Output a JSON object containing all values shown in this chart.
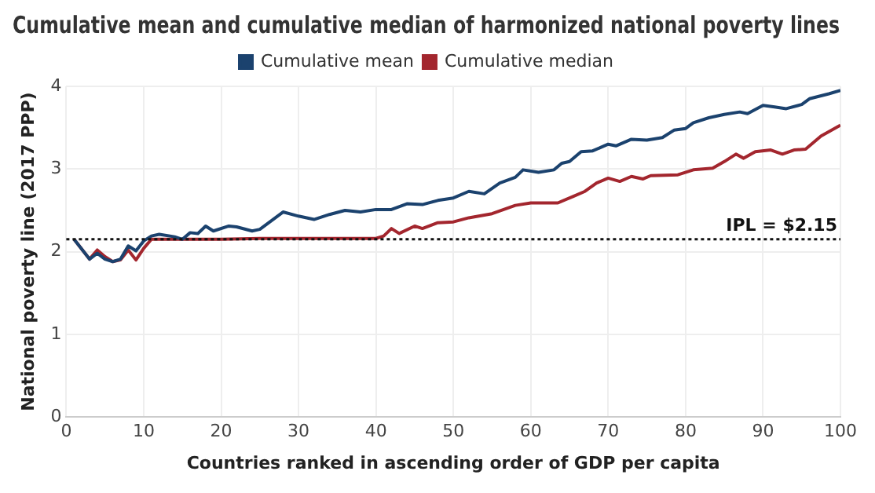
{
  "chart_data": {
    "type": "line",
    "title": "Cumulative mean and cumulative median of harmonized national poverty lines",
    "xlabel": "Countries ranked in ascending order of GDP per capita",
    "ylabel": "National poverty line (2017 PPP)",
    "series": [
      {
        "name": "Cumulative mean",
        "color": "#1b426e",
        "x": [
          1,
          3,
          4,
          5,
          6,
          7,
          8,
          9,
          10,
          11,
          12,
          14,
          15,
          16,
          17,
          18,
          19,
          21,
          22,
          24,
          25,
          28,
          30,
          32,
          34,
          36,
          38,
          40,
          42,
          44,
          46,
          48,
          50,
          52,
          54,
          56,
          58,
          59,
          61,
          63,
          64,
          65,
          66.5,
          68,
          70,
          71,
          73,
          75,
          77,
          78.5,
          80,
          81,
          83,
          85,
          87,
          88,
          90,
          91.5,
          93,
          95,
          96,
          98.5,
          100
        ],
        "values": [
          2.15,
          1.91,
          1.98,
          1.91,
          1.88,
          1.91,
          2.07,
          2.01,
          2.13,
          2.19,
          2.21,
          2.18,
          2.15,
          2.23,
          2.22,
          2.31,
          2.25,
          2.31,
          2.3,
          2.25,
          2.27,
          2.48,
          2.43,
          2.39,
          2.45,
          2.5,
          2.48,
          2.51,
          2.51,
          2.58,
          2.57,
          2.62,
          2.65,
          2.73,
          2.7,
          2.83,
          2.9,
          2.99,
          2.96,
          2.99,
          3.07,
          3.09,
          3.21,
          3.22,
          3.3,
          3.28,
          3.36,
          3.35,
          3.38,
          3.47,
          3.49,
          3.56,
          3.62,
          3.66,
          3.69,
          3.67,
          3.77,
          3.75,
          3.73,
          3.78,
          3.85,
          3.91,
          3.95
        ]
      },
      {
        "name": "Cumulative median",
        "color": "#a3262e",
        "x": [
          1,
          3,
          4,
          5,
          6,
          7,
          8,
          9,
          10,
          11,
          12,
          20,
          25,
          40,
          41,
          42,
          43,
          45,
          46,
          48,
          50,
          52,
          55,
          58,
          60,
          63.5,
          65.5,
          67,
          68.5,
          70,
          71.5,
          73,
          74.5,
          75.5,
          79,
          81,
          83.5,
          85,
          86.5,
          87.5,
          89,
          91,
          92.5,
          94,
          95.5,
          97.5,
          100
        ],
        "values": [
          2.15,
          1.91,
          2.02,
          1.94,
          1.88,
          1.9,
          2.02,
          1.9,
          2.04,
          2.15,
          2.15,
          2.15,
          2.16,
          2.16,
          2.19,
          2.28,
          2.22,
          2.31,
          2.28,
          2.35,
          2.36,
          2.41,
          2.46,
          2.56,
          2.59,
          2.59,
          2.67,
          2.73,
          2.83,
          2.89,
          2.85,
          2.91,
          2.88,
          2.92,
          2.93,
          2.99,
          3.01,
          3.09,
          3.18,
          3.13,
          3.21,
          3.23,
          3.18,
          3.23,
          3.24,
          3.4,
          3.53
        ]
      }
    ],
    "xlim": [
      0,
      100
    ],
    "xticks": [
      0,
      10,
      20,
      30,
      40,
      50,
      60,
      70,
      80,
      90,
      100
    ],
    "ylim": [
      0,
      4
    ],
    "yticks": [
      0,
      1,
      2,
      3,
      4
    ],
    "ref_lines": [
      {
        "axis": "y",
        "value": 2.15,
        "label": "IPL = $2.15",
        "color": "#111111",
        "line_style": "dotted"
      }
    ],
    "grid": true,
    "legend": "top",
    "marker": "none",
    "line_style": "solid"
  }
}
